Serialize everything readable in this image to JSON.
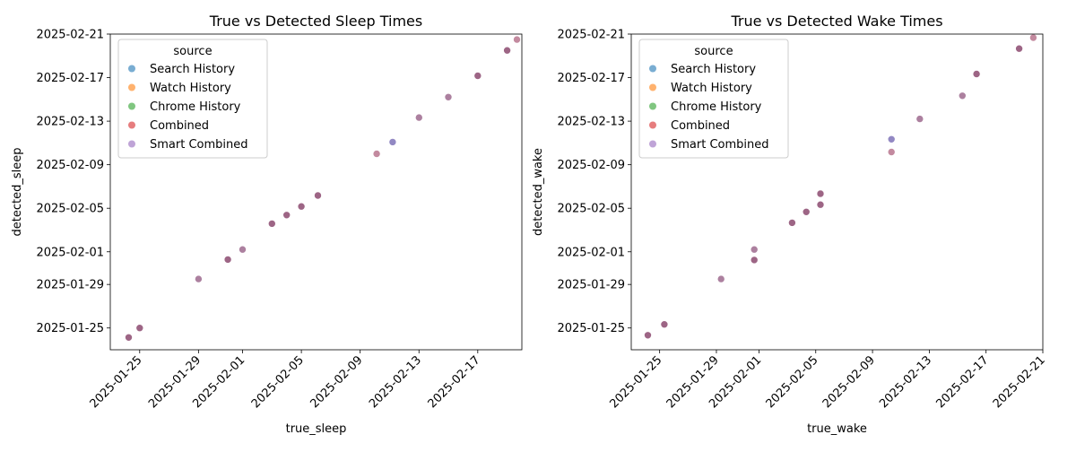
{
  "chart_data": [
    {
      "type": "scatter",
      "title": "True vs Detected Sleep Times",
      "xlabel": "true_sleep",
      "ylabel": "detected_sleep",
      "xlim": [
        "2025-01-23",
        "2025-02-20"
      ],
      "ylim": [
        "2025-01-23",
        "2025-02-21"
      ],
      "xticks": [
        "2025-01-25",
        "2025-01-29",
        "2025-02-01",
        "2025-02-05",
        "2025-02-09",
        "2025-02-13",
        "2025-02-17"
      ],
      "yticks": [
        "2025-01-25",
        "2025-01-29",
        "2025-02-01",
        "2025-02-05",
        "2025-02-09",
        "2025-02-13",
        "2025-02-17",
        "2025-02-21"
      ],
      "grid": false,
      "legend": {
        "title": "source",
        "placement": "upper-left",
        "entries": [
          {
            "name": "Search History",
            "color": "#1f77b4"
          },
          {
            "name": "Watch History",
            "color": "#ff7f0e"
          },
          {
            "name": "Chrome History",
            "color": "#2ca02c"
          },
          {
            "name": "Combined",
            "color": "#d62728"
          },
          {
            "name": "Smart Combined",
            "color": "#9467bd"
          }
        ]
      },
      "points": [
        {
          "x": "2025-01-24 06:00",
          "y": "2025-01-24 03:00",
          "color": "#8c4a70"
        },
        {
          "x": "2025-01-25 00:00",
          "y": "2025-01-25 00:00",
          "color": "#8c4a70"
        },
        {
          "x": "2025-01-29 00:00",
          "y": "2025-01-29 12:00",
          "color": "#9e6a8e"
        },
        {
          "x": "2025-01-31 00:00",
          "y": "2025-01-31 07:00",
          "color": "#8c4a70"
        },
        {
          "x": "2025-02-01 00:00",
          "y": "2025-02-01 05:00",
          "color": "#9e6a8e"
        },
        {
          "x": "2025-02-03 00:00",
          "y": "2025-02-03 14:00",
          "color": "#8c4a70"
        },
        {
          "x": "2025-02-04 00:00",
          "y": "2025-02-04 09:00",
          "color": "#8c4a70"
        },
        {
          "x": "2025-02-05 00:00",
          "y": "2025-02-05 04:00",
          "color": "#8c4a70"
        },
        {
          "x": "2025-02-06 03:00",
          "y": "2025-02-06 04:00",
          "color": "#8c4a70"
        },
        {
          "x": "2025-02-10 03:00",
          "y": "2025-02-10 00:00",
          "color": "#b9758e"
        },
        {
          "x": "2025-02-11 05:00",
          "y": "2025-02-11 02:00",
          "color": "#7f73b8"
        },
        {
          "x": "2025-02-13 00:00",
          "y": "2025-02-13 08:00",
          "color": "#9e6a8e"
        },
        {
          "x": "2025-02-15 00:00",
          "y": "2025-02-15 05:00",
          "color": "#9e6a8e"
        },
        {
          "x": "2025-02-17 00:00",
          "y": "2025-02-17 04:00",
          "color": "#8c4a70"
        },
        {
          "x": "2025-02-19 00:00",
          "y": "2025-02-19 12:00",
          "color": "#8c4a70"
        },
        {
          "x": "2025-02-19 16:00",
          "y": "2025-02-20 12:00",
          "color": "#b9758e"
        }
      ]
    },
    {
      "type": "scatter",
      "title": "True vs Detected Wake Times",
      "xlabel": "true_wake",
      "ylabel": "detected_wake",
      "xlim": [
        "2025-01-23",
        "2025-02-21"
      ],
      "ylim": [
        "2025-01-23",
        "2025-02-21"
      ],
      "xticks": [
        "2025-01-25",
        "2025-01-29",
        "2025-02-01",
        "2025-02-05",
        "2025-02-09",
        "2025-02-13",
        "2025-02-17",
        "2025-02-21"
      ],
      "yticks": [
        "2025-01-25",
        "2025-01-29",
        "2025-02-01",
        "2025-02-05",
        "2025-02-09",
        "2025-02-13",
        "2025-02-17",
        "2025-02-21"
      ],
      "grid": false,
      "legend": {
        "title": "source",
        "placement": "upper-left",
        "entries": [
          {
            "name": "Search History",
            "color": "#1f77b4"
          },
          {
            "name": "Watch History",
            "color": "#ff7f0e"
          },
          {
            "name": "Chrome History",
            "color": "#2ca02c"
          },
          {
            "name": "Combined",
            "color": "#d62728"
          },
          {
            "name": "Smart Combined",
            "color": "#9467bd"
          }
        ]
      },
      "points": [
        {
          "x": "2025-01-24 04:00",
          "y": "2025-01-24 08:00",
          "color": "#8c4a70"
        },
        {
          "x": "2025-01-25 08:00",
          "y": "2025-01-25 08:00",
          "color": "#8c4a70"
        },
        {
          "x": "2025-01-29 08:00",
          "y": "2025-01-29 12:00",
          "color": "#9e6a8e"
        },
        {
          "x": "2025-01-31 16:00",
          "y": "2025-01-31 06:00",
          "color": "#8c4a70"
        },
        {
          "x": "2025-01-31 16:00",
          "y": "2025-02-01 05:00",
          "color": "#9e6a8e"
        },
        {
          "x": "2025-02-03 08:00",
          "y": "2025-02-03 16:00",
          "color": "#8c4a70"
        },
        {
          "x": "2025-02-04 08:00",
          "y": "2025-02-04 16:00",
          "color": "#8c4a70"
        },
        {
          "x": "2025-02-05 08:00",
          "y": "2025-02-05 08:00",
          "color": "#8c4a70"
        },
        {
          "x": "2025-02-05 08:00",
          "y": "2025-02-06 08:00",
          "color": "#8c4a70"
        },
        {
          "x": "2025-02-10 08:00",
          "y": "2025-02-10 04:00",
          "color": "#b9758e"
        },
        {
          "x": "2025-02-10 08:00",
          "y": "2025-02-11 08:00",
          "color": "#7f73b8"
        },
        {
          "x": "2025-02-12 08:00",
          "y": "2025-02-13 05:00",
          "color": "#9e6a8e"
        },
        {
          "x": "2025-02-15 08:00",
          "y": "2025-02-15 08:00",
          "color": "#9e6a8e"
        },
        {
          "x": "2025-02-16 08:00",
          "y": "2025-02-17 08:00",
          "color": "#8c4a70"
        },
        {
          "x": "2025-02-19 08:00",
          "y": "2025-02-19 16:00",
          "color": "#8c4a70"
        },
        {
          "x": "2025-02-20 08:00",
          "y": "2025-02-20 16:00",
          "color": "#b9758e"
        }
      ]
    }
  ]
}
